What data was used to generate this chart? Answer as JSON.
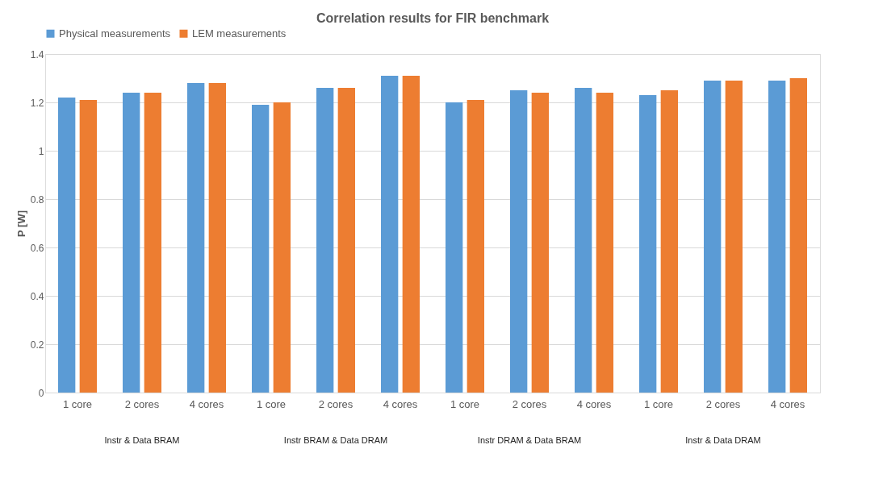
{
  "chart_data": {
    "type": "bar",
    "title": "Correlation  results for FIR benchmark",
    "ylabel": "P [W]",
    "categories": [
      "1 core",
      "2 cores",
      "4 cores",
      "1 core",
      "2 cores",
      "4 cores",
      "1 core",
      "2 cores",
      "4 cores",
      "1 core",
      "2 cores",
      "4 cores"
    ],
    "series": [
      {
        "name": "Physical measurements",
        "color": "#5b9bd5",
        "values": [
          1.22,
          1.24,
          1.28,
          1.19,
          1.26,
          1.31,
          1.2,
          1.25,
          1.26,
          1.23,
          1.29,
          1.29
        ]
      },
      {
        "name": "LEM measurements",
        "color": "#ed7d31",
        "values": [
          1.21,
          1.24,
          1.28,
          1.2,
          1.26,
          1.31,
          1.21,
          1.24,
          1.24,
          1.25,
          1.29,
          1.3
        ]
      }
    ],
    "ylim": [
      0,
      1.4
    ],
    "yticks": [
      0,
      0.2,
      0.4,
      0.6,
      0.8,
      1,
      1.2,
      1.4
    ],
    "grid": "y",
    "legend": "top",
    "annotations": [
      "Instr  & Data BRAM",
      "Instr BRAM & Data DRAM",
      "Instr DRAM & Data BRAM",
      "Instr & Data DRAM"
    ]
  }
}
